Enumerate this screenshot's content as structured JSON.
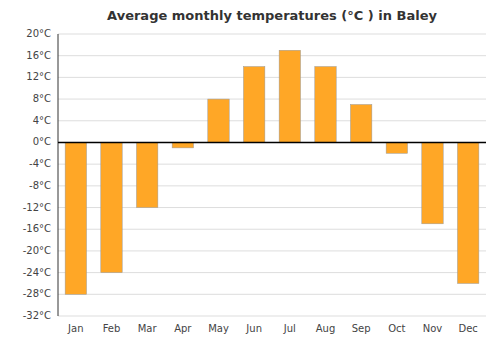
{
  "chart_data": {
    "type": "bar",
    "title": "Average monthly temperatures (°C ) in Baley",
    "categories": [
      "Jan",
      "Feb",
      "Mar",
      "Apr",
      "May",
      "Jun",
      "Jul",
      "Aug",
      "Sep",
      "Oct",
      "Nov",
      "Dec"
    ],
    "values": [
      -28,
      -24,
      -12,
      -1,
      8,
      14,
      17,
      14,
      7,
      -2,
      -15,
      -26
    ],
    "color": "#FFA726",
    "ylim": [
      -32,
      20
    ],
    "yticks": [
      {
        "value": -32,
        "label": "-32°C"
      },
      {
        "value": -28,
        "label": "-28°C"
      },
      {
        "value": -24,
        "label": "-24°C"
      },
      {
        "value": -20,
        "label": "-20°C"
      },
      {
        "value": -16,
        "label": "-16°C"
      },
      {
        "value": -12,
        "label": "-12°C"
      },
      {
        "value": -8,
        "label": "-8°C"
      },
      {
        "value": -4,
        "label": "-4°C"
      },
      {
        "value": 0,
        "label": "0°C"
      },
      {
        "value": 4,
        "label": "4°C"
      },
      {
        "value": 8,
        "label": "8°C"
      },
      {
        "value": 12,
        "label": "12°C"
      },
      {
        "value": 16,
        "label": "16°C"
      },
      {
        "value": 20,
        "label": "20°C"
      }
    ],
    "grid": true
  }
}
